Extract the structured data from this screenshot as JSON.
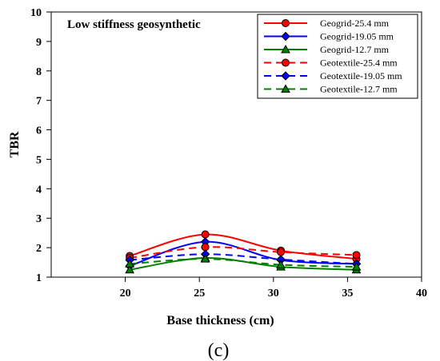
{
  "chart_data": {
    "type": "line",
    "title": "Low stiffness geosynthetic",
    "panel_label": "(c)",
    "xlabel": "Base thickness (cm)",
    "ylabel": "TBR",
    "xlim": [
      15,
      40
    ],
    "ylim": [
      1,
      10
    ],
    "xticks": [
      20,
      25,
      30,
      35,
      40
    ],
    "yticks": [
      1,
      2,
      3,
      4,
      5,
      6,
      7,
      8,
      9,
      10
    ],
    "grid": false,
    "legend_position": "top-right",
    "x": [
      20.3,
      25.4,
      30.5,
      35.6
    ],
    "series": [
      {
        "name": "Geogrid-25.4 mm",
        "values": [
          1.72,
          2.45,
          1.9,
          1.62
        ],
        "color": "#ff0000",
        "marker": "circle",
        "dashed": false
      },
      {
        "name": "Geogrid-19.05 mm",
        "values": [
          1.38,
          2.2,
          1.58,
          1.45
        ],
        "color": "#0000ff",
        "marker": "diamond",
        "dashed": false
      },
      {
        "name": "Geogrid-12.7 mm",
        "values": [
          1.25,
          1.65,
          1.35,
          1.25
        ],
        "color": "#008000",
        "marker": "triangle",
        "dashed": false
      },
      {
        "name": "Geotextile-25.4 mm",
        "values": [
          1.65,
          2.02,
          1.85,
          1.75
        ],
        "color": "#ff0000",
        "marker": "circle",
        "dashed": true
      },
      {
        "name": "Geotextile-19.05 mm",
        "values": [
          1.58,
          1.78,
          1.6,
          1.45
        ],
        "color": "#0000ff",
        "marker": "diamond",
        "dashed": true
      },
      {
        "name": "Geotextile-12.7 mm",
        "values": [
          1.45,
          1.62,
          1.42,
          1.35
        ],
        "color": "#008000",
        "marker": "triangle",
        "dashed": true
      }
    ]
  }
}
